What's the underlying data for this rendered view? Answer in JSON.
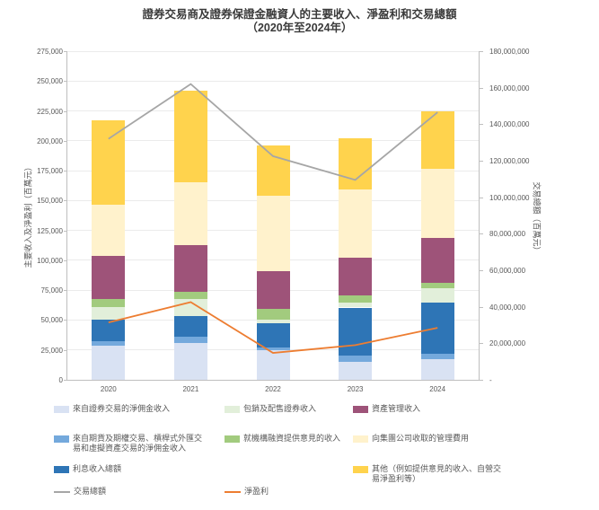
{
  "title": {
    "line1": "證券交易商及證券保證金融資人的主要收入、淨盈利和交易總額",
    "line2": "（2020年至2024年）"
  },
  "chart_data": {
    "type": "bar",
    "subtype": "stacked-column-with-lines",
    "categories": [
      "2020",
      "2021",
      "2022",
      "2023",
      "2024"
    ],
    "series": [
      {
        "name": "來自證券交易的淨佣金收入",
        "color": "#d9e2f3",
        "values": [
          28500,
          31000,
          24500,
          15000,
          17000
        ]
      },
      {
        "name": "來自期貨及期權交易、槓桿式外匯交易和虛擬資產交易的淨佣金收入",
        "color": "#74a9dc",
        "values": [
          3500,
          5000,
          2500,
          5000,
          5000
        ]
      },
      {
        "name": "利息收入總額",
        "color": "#2e75b6",
        "values": [
          18500,
          17500,
          20500,
          40500,
          43000
        ]
      },
      {
        "name": "包銷及配售證券收入",
        "color": "#e2efda",
        "values": [
          10500,
          14000,
          3000,
          4500,
          12000
        ]
      },
      {
        "name": "就機構融資提供意見的收入",
        "color": "#a2cb7e",
        "values": [
          7000,
          6000,
          9000,
          5500,
          4000
        ]
      },
      {
        "name": "資產管理收入",
        "color": "#9e5379",
        "values": [
          36000,
          39500,
          31500,
          32000,
          37500
        ]
      },
      {
        "name": "向集團公司收取的管理費用",
        "color": "#fff2cc",
        "values": [
          42500,
          52000,
          63000,
          57000,
          58000
        ]
      },
      {
        "name": "其他（例如提供意見的收入、自營交易淨盈利等）",
        "color": "#ffd34d",
        "values": [
          70500,
          77000,
          42000,
          42500,
          48500
        ]
      }
    ],
    "lines": [
      {
        "name": "交易總額",
        "color": "#a6a6a6",
        "axis": "right",
        "values": [
          132000000,
          162000000,
          122500000,
          109500000,
          146500000
        ]
      },
      {
        "name": "淨盈利",
        "color": "#ed7d31",
        "axis": "left",
        "values": [
          48000,
          65000,
          22500,
          29000,
          43500
        ]
      }
    ],
    "left_axis": {
      "title": "主要收入及淨盈利（百萬元）",
      "min": 0,
      "max": 275000,
      "step": 25000,
      "tick_labels": [
        "0",
        "25,000",
        "50,000",
        "75,000",
        "100,000",
        "125,000",
        "150,000",
        "175,000",
        "200,000",
        "225,000",
        "250,000",
        "275,000"
      ]
    },
    "right_axis": {
      "title": "交易總額（百萬元）",
      "min": 0,
      "max": 180000000,
      "step": 20000000,
      "tick_labels": [
        "-",
        "20,000,000",
        "40,000,000",
        "60,000,000",
        "80,000,000",
        "100,000,000",
        "120,000,000",
        "140,000,000",
        "160,000,000",
        "180,000,000"
      ]
    },
    "grid": true,
    "legend_position": "bottom"
  },
  "legend_rows": [
    [
      "s0",
      "s3",
      "s5"
    ],
    [
      "s1",
      "s4",
      "s6"
    ],
    [
      "s2",
      null,
      "s7"
    ],
    [
      "l0",
      "l1",
      null
    ]
  ]
}
